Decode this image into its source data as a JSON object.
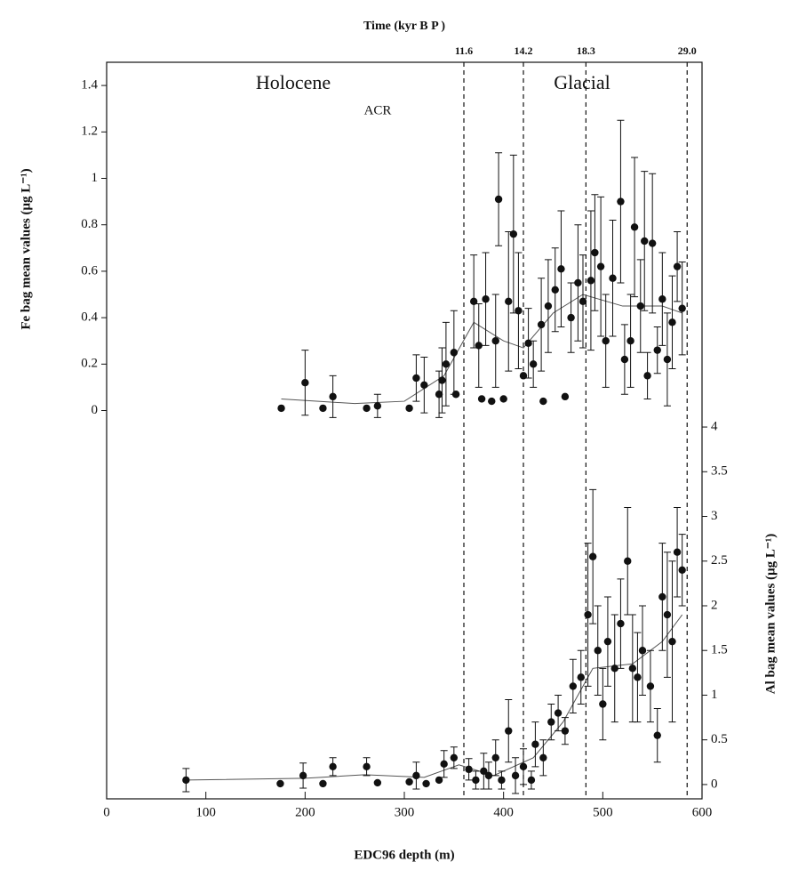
{
  "chart_data": {
    "type": "scatter",
    "title": "Time (kyr B P )",
    "xlabel": "EDC96 depth (m)",
    "ylabel": "Fe bag mean values (μg L⁻¹)",
    "y2label": "Al bag mean values (μg L⁻¹)",
    "annotations": [
      "Holocene",
      "ACR",
      "Glacial"
    ],
    "xlim": [
      0,
      600
    ],
    "xticks": [
      0,
      100,
      200,
      300,
      400,
      500,
      600
    ],
    "ylim": [
      -0.09,
      1.5
    ],
    "yticks": [
      0,
      0.2,
      0.4,
      0.6,
      0.8,
      1,
      1.2,
      1.4
    ],
    "y2lim": [
      -0.16,
      4.1
    ],
    "y2ticks": [
      0,
      0.5,
      1,
      1.5,
      2,
      2.5,
      3,
      3.5,
      4
    ],
    "top_ticks": [
      {
        "value": 360,
        "label": "11.6"
      },
      {
        "value": 420,
        "label": "14.2"
      },
      {
        "value": 483,
        "label": "18.3"
      },
      {
        "value": 585,
        "label": "29.0"
      }
    ],
    "color": "#111111",
    "series": [
      {
        "axis": "y",
        "x": [
          176,
          200,
          218,
          228,
          262,
          273,
          305,
          312,
          320,
          335,
          338,
          342,
          350,
          352,
          370,
          375,
          378,
          382,
          388,
          392,
          395,
          400,
          405,
          410,
          415,
          420,
          425,
          430,
          438,
          440,
          445,
          452,
          458,
          462,
          468,
          475,
          480,
          488,
          492,
          498,
          503,
          510,
          518,
          522,
          528,
          532,
          538,
          542,
          545,
          550,
          555,
          560,
          565,
          570,
          575,
          580
        ],
        "values": [
          0.01,
          0.12,
          0.01,
          0.06,
          0.01,
          0.02,
          0.01,
          0.14,
          0.11,
          0.07,
          0.13,
          0.2,
          0.25,
          0.07,
          0.47,
          0.28,
          0.05,
          0.48,
          0.04,
          0.3,
          0.91,
          0.05,
          0.47,
          0.76,
          0.43,
          0.15,
          0.29,
          0.2,
          0.37,
          0.04,
          0.45,
          0.52,
          0.61,
          0.06,
          0.4,
          0.55,
          0.47,
          0.56,
          0.68,
          0.62,
          0.3,
          0.57,
          0.9,
          0.22,
          0.3,
          0.79,
          0.45,
          0.73,
          0.15,
          0.72,
          0.26,
          0.48,
          0.22,
          0.38,
          0.62,
          0.44
        ],
        "errors": [
          0,
          0.14,
          0,
          0.09,
          0,
          0.05,
          0,
          0.1,
          0.12,
          0.1,
          0.14,
          0.18,
          0.18,
          0,
          0.2,
          0.18,
          0,
          0.2,
          0,
          0.2,
          0.2,
          0,
          0.3,
          0.34,
          0.25,
          0,
          0.15,
          0.1,
          0.2,
          0,
          0.2,
          0.18,
          0.25,
          0,
          0.15,
          0.25,
          0.2,
          0.3,
          0.25,
          0.3,
          0.2,
          0.25,
          0.35,
          0.15,
          0.2,
          0.3,
          0.2,
          0.3,
          0.1,
          0.3,
          0.1,
          0.2,
          0.2,
          0.2,
          0.15,
          0.2
        ]
      },
      {
        "axis": "y2",
        "x": [
          80,
          175,
          198,
          218,
          228,
          262,
          273,
          305,
          312,
          322,
          335,
          340,
          350,
          365,
          372,
          380,
          385,
          392,
          398,
          405,
          412,
          420,
          428,
          432,
          440,
          448,
          455,
          462,
          470,
          478,
          485,
          490,
          495,
          500,
          505,
          512,
          518,
          525,
          530,
          535,
          540,
          548,
          555,
          560,
          565,
          570,
          575,
          580
        ],
        "values": [
          0.05,
          0.01,
          0.1,
          0.01,
          0.2,
          0.2,
          0.02,
          0.03,
          0.1,
          0.01,
          0.05,
          0.23,
          0.3,
          0.17,
          0.05,
          0.15,
          0.1,
          0.3,
          0.05,
          0.6,
          0.1,
          0.2,
          0.05,
          0.45,
          0.3,
          0.7,
          0.8,
          0.6,
          1.1,
          1.2,
          1.9,
          2.55,
          1.5,
          0.9,
          1.6,
          1.3,
          1.8,
          2.5,
          1.3,
          1.2,
          1.5,
          1.1,
          0.55,
          2.1,
          1.9,
          1.6,
          2.6,
          2.4
        ],
        "errors": [
          0.13,
          0,
          0.14,
          0,
          0.1,
          0.1,
          0,
          0,
          0.15,
          0,
          0,
          0.15,
          0.12,
          0.12,
          0.1,
          0.2,
          0.15,
          0.2,
          0.1,
          0.35,
          0.2,
          0.2,
          0.1,
          0.25,
          0.2,
          0.2,
          0.2,
          0.15,
          0.3,
          0.3,
          0.8,
          0.75,
          0.5,
          0.4,
          0.5,
          0.6,
          0.5,
          0.6,
          0.6,
          0.5,
          0.5,
          0.4,
          0.3,
          0.6,
          0.7,
          0.9,
          0.5,
          0.4
        ]
      }
    ],
    "fits": [
      {
        "axis": "y",
        "x": [
          176,
          250,
          300,
          340,
          370,
          400,
          420,
          450,
          480,
          520,
          560,
          580
        ],
        "values": [
          0.05,
          0.03,
          0.04,
          0.15,
          0.38,
          0.3,
          0.27,
          0.42,
          0.5,
          0.45,
          0.45,
          0.42
        ]
      },
      {
        "axis": "y2",
        "x": [
          80,
          200,
          260,
          320,
          355,
          390,
          430,
          460,
          490,
          530,
          560,
          580
        ],
        "values": [
          0.05,
          0.07,
          0.11,
          0.08,
          0.22,
          0.1,
          0.3,
          0.7,
          1.3,
          1.35,
          1.6,
          1.9
        ]
      }
    ]
  }
}
